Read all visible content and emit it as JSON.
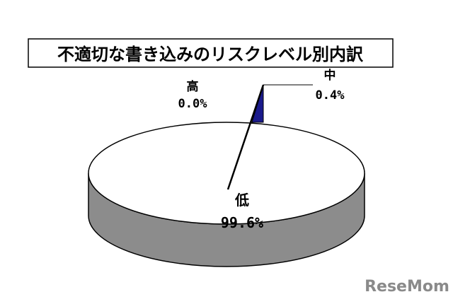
{
  "chart_data": {
    "type": "pie",
    "style": "3d",
    "title": "不適切な書き込みのリスクレベル別内訳",
    "slices": [
      {
        "label": "低",
        "value": 99.6,
        "value_label": "99.6%",
        "color": "#ffffff"
      },
      {
        "label": "中",
        "value": 0.4,
        "value_label": "0.4%",
        "color": "#1a1a8c"
      },
      {
        "label": "高",
        "value": 0.0,
        "value_label": "0.0%",
        "color": "#000000"
      }
    ],
    "side_color": "#8c8c8c"
  },
  "watermark": "ReseMom"
}
